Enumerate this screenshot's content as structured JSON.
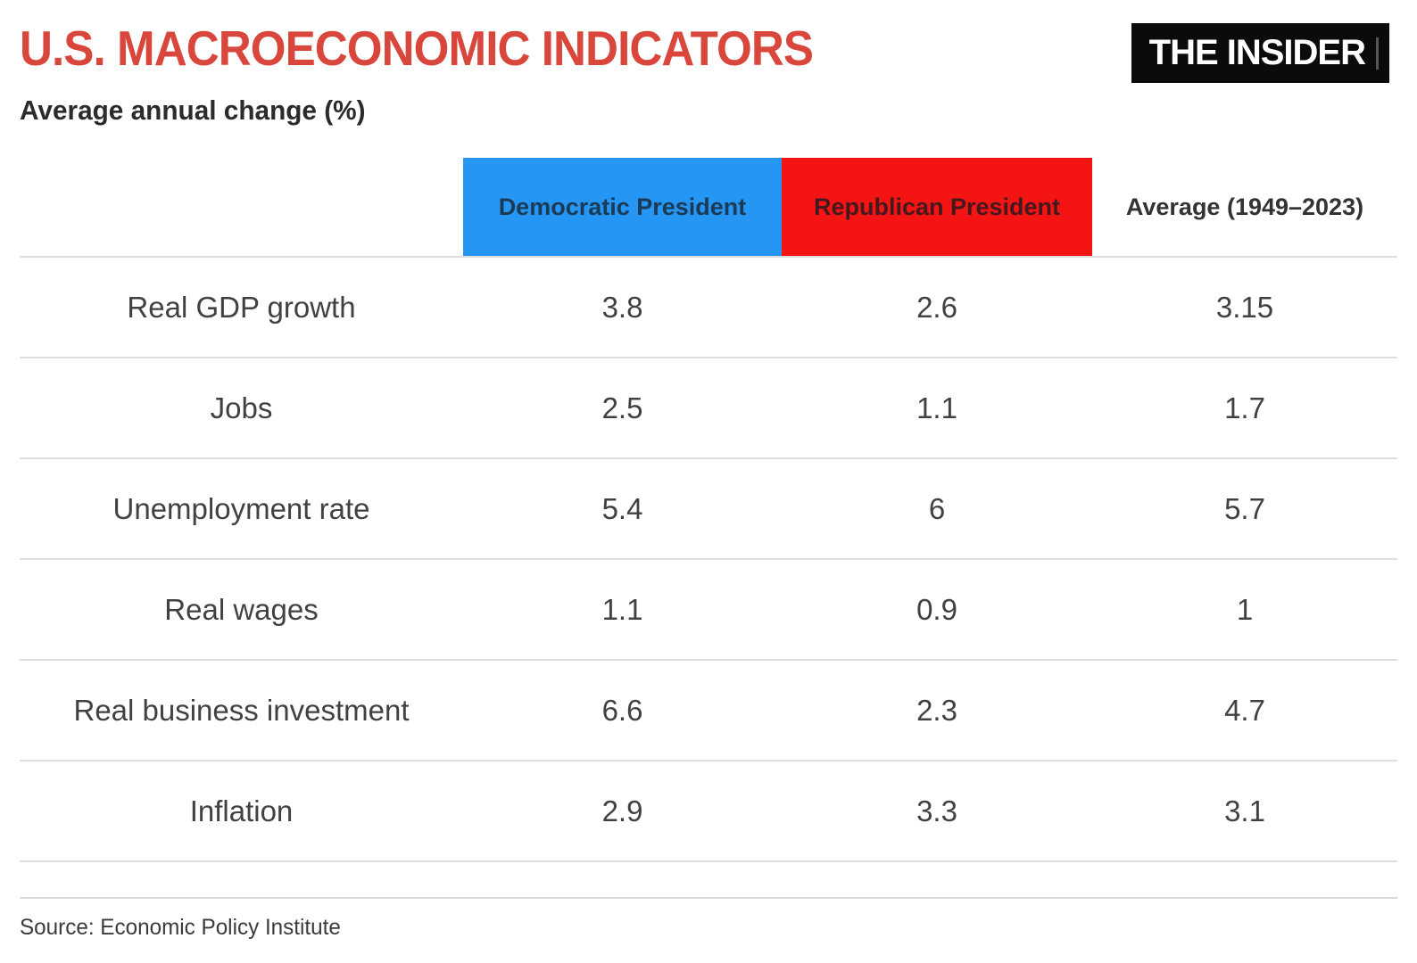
{
  "page": {
    "title": "U.S. MACROECONOMIC INDICATORS",
    "subtitle": "Average annual change (%)",
    "source": "Source: Economic Policy Institute"
  },
  "logo": {
    "text": "THE INSIDER"
  },
  "colors": {
    "title_red": "#d9463c",
    "democratic_blue": "#2696f5",
    "republican_red": "#f51414",
    "democratic_header_text": "#1b3a55",
    "republican_header_text": "#44191e",
    "body_text": "#414141",
    "gridline": "#dedede",
    "logo_background": "#0b0b0b",
    "logo_text": "#ffffff"
  },
  "chart_data": {
    "type": "table",
    "title": "U.S. MACROECONOMIC INDICATORS",
    "subtitle": "Average annual change (%)",
    "columns": [
      "",
      "Democratic President",
      "Republican President",
      "Average (1949–2023)"
    ],
    "rows": [
      {
        "label": "Real GDP growth",
        "democratic": "3.8",
        "republican": "2.6",
        "average": "3.15"
      },
      {
        "label": "Jobs",
        "democratic": "2.5",
        "republican": "1.1",
        "average": "1.7"
      },
      {
        "label": "Unemployment rate",
        "democratic": "5.4",
        "republican": "6",
        "average": "5.7"
      },
      {
        "label": "Real wages",
        "democratic": "1.1",
        "republican": "0.9",
        "average": "1"
      },
      {
        "label": "Real business investment",
        "democratic": "6.6",
        "republican": "2.3",
        "average": "4.7"
      },
      {
        "label": "Inflation",
        "democratic": "2.9",
        "republican": "3.3",
        "average": "3.1"
      }
    ],
    "source": "Source: Economic Policy Institute",
    "layout": {
      "grid": "horizontal-only",
      "header_fill_colors": [
        "#2696f5",
        "#f51414",
        "none"
      ]
    }
  }
}
